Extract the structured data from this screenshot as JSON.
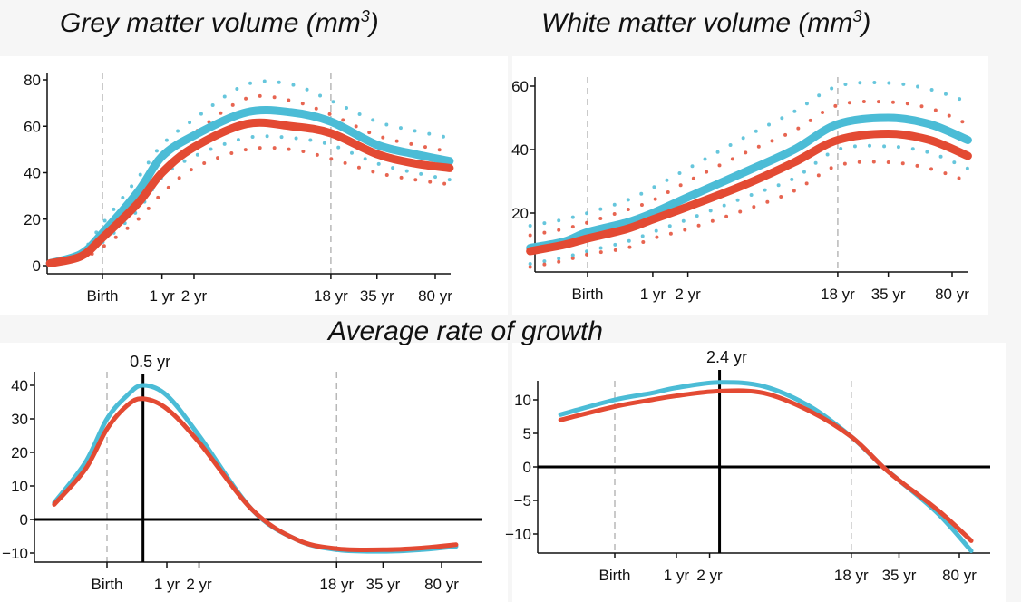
{
  "titles": {
    "grey": {
      "text": "Grey matter volume (mm",
      "sup": "3",
      "close": ")"
    },
    "white": {
      "text": "White matter volume (mm",
      "sup": "3",
      "close": ")"
    },
    "rate": "Average rate of growth"
  },
  "colors": {
    "blue": "#4bbcd6",
    "red": "#e34a33",
    "axis": "#111111",
    "dashed": "#b8b8b8"
  },
  "chart_data": [
    {
      "type": "line",
      "title": "Grey matter volume (mm3)",
      "x_scale": "log post-conception age",
      "xticks": [
        {
          "label": "Birth",
          "age": 0
        },
        {
          "label": "1 yr",
          "age": 1
        },
        {
          "label": "2 yr",
          "age": 2
        },
        {
          "label": "18 yr",
          "age": 18
        },
        {
          "label": "35 yr",
          "age": 35
        },
        {
          "label": "80 yr",
          "age": 80
        }
      ],
      "yticks": [
        0,
        20,
        40,
        60,
        80
      ],
      "reference_lines": [
        {
          "age": 0,
          "style": "dashed"
        },
        {
          "age": 18,
          "style": "dashed"
        }
      ],
      "x": [
        -0.4,
        -0.2,
        0,
        0.5,
        1,
        2,
        5,
        10,
        18,
        35,
        60,
        98
      ],
      "series": [
        {
          "color": "blue",
          "style": "solid",
          "values": [
            1,
            5,
            14,
            32,
            47,
            56,
            66,
            66,
            62,
            52,
            48,
            45
          ]
        },
        {
          "color": "red",
          "style": "solid",
          "values": [
            1,
            4,
            12,
            27,
            40,
            51,
            61,
            60,
            57,
            48,
            44,
            42
          ]
        },
        {
          "color": "blue",
          "style": "dotted",
          "values": [
            1,
            6,
            18,
            38,
            52,
            63,
            78,
            78,
            71,
            62,
            58,
            55
          ]
        },
        {
          "color": "blue",
          "style": "dotted",
          "values": [
            1,
            4,
            10,
            24,
            38,
            47,
            55,
            55,
            52,
            44,
            40,
            37
          ]
        },
        {
          "color": "red",
          "style": "dotted",
          "values": [
            1,
            5,
            15,
            33,
            46,
            57,
            72,
            71,
            65,
            56,
            52,
            49
          ]
        },
        {
          "color": "red",
          "style": "dotted",
          "values": [
            1,
            3,
            8,
            20,
            31,
            42,
            50,
            50,
            46,
            40,
            37,
            35
          ]
        }
      ]
    },
    {
      "type": "line",
      "title": "White matter volume (mm3)",
      "x_scale": "log post-conception age",
      "xticks": [
        {
          "label": "Birth",
          "age": 0
        },
        {
          "label": "1 yr",
          "age": 1
        },
        {
          "label": "2 yr",
          "age": 2
        },
        {
          "label": "18 yr",
          "age": 18
        },
        {
          "label": "35 yr",
          "age": 35
        },
        {
          "label": "80 yr",
          "age": 80
        }
      ],
      "yticks": [
        20,
        40,
        60
      ],
      "reference_lines": [
        {
          "age": 0,
          "style": "dashed"
        },
        {
          "age": 18,
          "style": "dashed"
        }
      ],
      "x": [
        -0.4,
        -0.2,
        0,
        0.5,
        1,
        2,
        5,
        10,
        18,
        35,
        60,
        98
      ],
      "series": [
        {
          "color": "blue",
          "style": "solid",
          "values": [
            9,
            11,
            14,
            17,
            20,
            25,
            33,
            40,
            48,
            50,
            48,
            43
          ]
        },
        {
          "color": "red",
          "style": "solid",
          "values": [
            8,
            10,
            12,
            15,
            18,
            22,
            29,
            36,
            43,
            45,
            43,
            38
          ]
        },
        {
          "color": "blue",
          "style": "dotted",
          "values": [
            16,
            18,
            20,
            24,
            28,
            34,
            44,
            52,
            60,
            61,
            59,
            55
          ]
        },
        {
          "color": "blue",
          "style": "dotted",
          "values": [
            4,
            6,
            8,
            11,
            14,
            18,
            25,
            31,
            40,
            41,
            39,
            34
          ]
        },
        {
          "color": "red",
          "style": "dotted",
          "values": [
            13,
            15,
            17,
            21,
            24,
            30,
            39,
            46,
            54,
            55,
            53,
            48
          ]
        },
        {
          "color": "red",
          "style": "dotted",
          "values": [
            3,
            5,
            7,
            9,
            12,
            15,
            21,
            27,
            35,
            36,
            34,
            30
          ]
        }
      ]
    },
    {
      "type": "line",
      "title": "Average rate of growth",
      "x_scale": "log post-conception age",
      "xticks": [
        {
          "label": "Birth",
          "age": 0
        },
        {
          "label": "1 yr",
          "age": 1
        },
        {
          "label": "2 yr",
          "age": 2
        },
        {
          "label": "18 yr",
          "age": 18
        },
        {
          "label": "35 yr",
          "age": 35
        },
        {
          "label": "80 yr",
          "age": 80
        }
      ],
      "yticks": [
        -10,
        0,
        10,
        20,
        30,
        40
      ],
      "reference_lines": [
        {
          "age": 0,
          "style": "dashed"
        },
        {
          "age": 18,
          "style": "dashed"
        }
      ],
      "peak_marker": {
        "age": 0.5,
        "label": "0.5 yr"
      },
      "x": [
        -0.4,
        -0.2,
        0,
        0.25,
        0.5,
        1,
        2,
        5,
        10,
        18,
        35,
        60,
        98
      ],
      "series": [
        {
          "color": "blue",
          "style": "solid",
          "values": [
            5,
            17,
            30,
            37,
            40,
            37,
            25,
            3,
            -6,
            -9,
            -9.5,
            -9,
            -8
          ]
        },
        {
          "color": "red",
          "style": "solid",
          "values": [
            4.5,
            15,
            27,
            34,
            36,
            33,
            23,
            3,
            -6,
            -8.7,
            -9,
            -8.5,
            -7.5
          ]
        }
      ]
    },
    {
      "type": "line",
      "title": "Average rate of growth",
      "x_scale": "log post-conception age",
      "xticks": [
        {
          "label": "Birth",
          "age": 0
        },
        {
          "label": "1 yr",
          "age": 1
        },
        {
          "label": "2 yr",
          "age": 2
        },
        {
          "label": "18 yr",
          "age": 18
        },
        {
          "label": "35 yr",
          "age": 35
        },
        {
          "label": "80 yr",
          "age": 80
        }
      ],
      "yticks": [
        -10,
        -5,
        0,
        5,
        10
      ],
      "reference_lines": [
        {
          "age": 0,
          "style": "dashed"
        },
        {
          "age": 18,
          "style": "dashed"
        }
      ],
      "peak_marker": {
        "age": 2.4,
        "label": "2.4 yr"
      },
      "x": [
        -0.4,
        0,
        0.5,
        1,
        2.4,
        5,
        10,
        18,
        28,
        35,
        60,
        94
      ],
      "series": [
        {
          "color": "blue",
          "style": "solid",
          "values": [
            7.8,
            10,
            11,
            11.8,
            12.6,
            12,
            9,
            4.5,
            0,
            -2,
            -7,
            -12.5
          ]
        },
        {
          "color": "red",
          "style": "solid",
          "values": [
            7,
            9,
            10,
            10.6,
            11.3,
            11,
            8.3,
            4.5,
            0,
            -2,
            -6.5,
            -11
          ]
        }
      ]
    }
  ]
}
